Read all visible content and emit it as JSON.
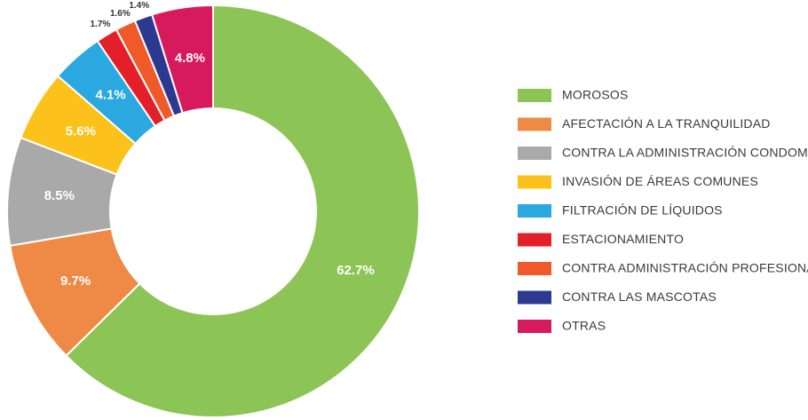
{
  "chart_data": {
    "type": "donut",
    "categories": [
      "MOROSOS",
      "AFECTACIÓN A LA TRANQUILIDAD",
      "CONTRA LA ADMINISTRACIÓN CONDOMINAL",
      "INVASIÓN DE ÁREAS COMUNES",
      "FILTRACIÓN DE LÍQUIDOS",
      "ESTACIONAMIENTO",
      "CONTRA ADMINISTRACIÓN PROFESIONAL",
      "CONTRA LAS MASCOTAS",
      "OTRAS"
    ],
    "values": [
      62.7,
      9.7,
      8.5,
      5.6,
      4.1,
      1.7,
      1.6,
      1.4,
      4.8
    ],
    "value_labels": [
      "62.7%",
      "9.7%",
      "8.5%",
      "5.6%",
      "4.1%",
      "1.7%",
      "1.6%",
      "1.4%",
      "4.8%"
    ],
    "colors": [
      "#8dc456",
      "#ee8a45",
      "#a9a9a9",
      "#fcc21b",
      "#2ba8df",
      "#e3202a",
      "#f05a2a",
      "#2c3990",
      "#d61a5c"
    ],
    "legend": "right"
  }
}
